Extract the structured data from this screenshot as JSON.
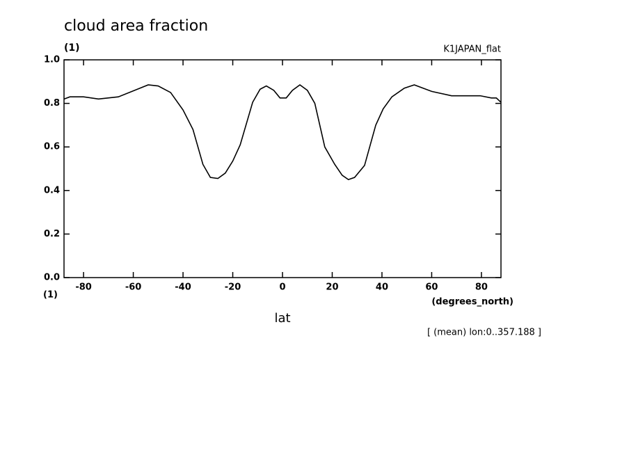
{
  "chart_data": {
    "type": "line",
    "title": "cloud area fraction",
    "y_unit": "(1)",
    "x_unit": "(1)",
    "subtitle": "K1JAPAN_flat",
    "x_label": "lat",
    "x_label_unit": "(degrees_north)",
    "annotation": "[ (mean) lon:0..357.188 ]",
    "x": [
      -87.86,
      -85.5,
      -80,
      -74,
      -66,
      -54,
      -50,
      -45,
      -40,
      -36,
      -32,
      -29,
      -26,
      -23,
      -20,
      -17,
      -12,
      -9,
      -6.5,
      -3.5,
      -1,
      1.5,
      4,
      7,
      10,
      13,
      17,
      21,
      24,
      26.5,
      29,
      33,
      37.5,
      40.5,
      44,
      49,
      53,
      60,
      68,
      79.5,
      84,
      86,
      87.86
    ],
    "series": [
      {
        "name": "cloud area fraction",
        "color": "#000000",
        "values": [
          0.82,
          0.83,
          0.83,
          0.82,
          0.83,
          0.885,
          0.88,
          0.85,
          0.77,
          0.68,
          0.52,
          0.46,
          0.455,
          0.48,
          0.535,
          0.61,
          0.805,
          0.865,
          0.88,
          0.86,
          0.825,
          0.825,
          0.86,
          0.885,
          0.86,
          0.8,
          0.6,
          0.52,
          0.47,
          0.45,
          0.46,
          0.515,
          0.7,
          0.775,
          0.83,
          0.87,
          0.885,
          0.855,
          0.835,
          0.835,
          0.825,
          0.825,
          0.805
        ]
      }
    ],
    "xlim": [
      -87.86,
      87.86
    ],
    "xticks": [
      -80,
      -60,
      -40,
      -20,
      0,
      20,
      40,
      60,
      80
    ],
    "ylim": [
      0,
      1
    ],
    "yticks": [
      {
        "value": 0,
        "label": "0.0"
      },
      0.2,
      0.4,
      0.6,
      0.8,
      {
        "value": 1,
        "label": "1.0"
      }
    ],
    "grid": false
  }
}
